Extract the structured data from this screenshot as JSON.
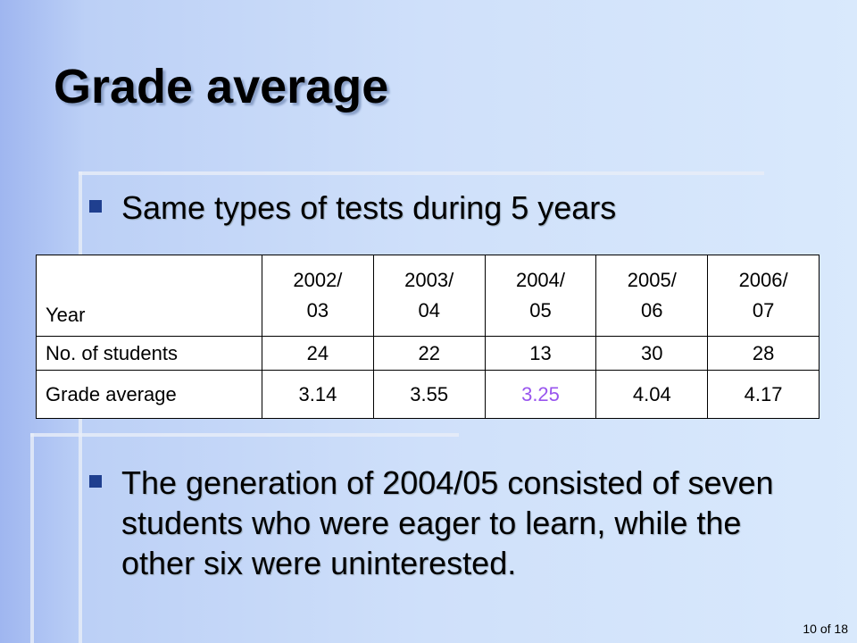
{
  "header": {
    "title": "Grade average"
  },
  "bullets": [
    "Same types of tests during 5 years",
    "The generation of 2004/05 consisted of seven students who were eager to learn, while the other six were uninterested."
  ],
  "table": {
    "header": [
      "Year",
      "2002/\n03",
      "2003/\n04",
      "2004/\n05",
      "2005/\n06",
      "2006/\n07"
    ],
    "rows": [
      [
        "No. of students",
        "24",
        "22",
        "13",
        "30",
        "28"
      ],
      [
        "Grade average",
        "3.14",
        "3.55",
        "3.25",
        "4.04",
        "4.17"
      ]
    ]
  },
  "footer": {
    "page": "10 of 18"
  }
}
